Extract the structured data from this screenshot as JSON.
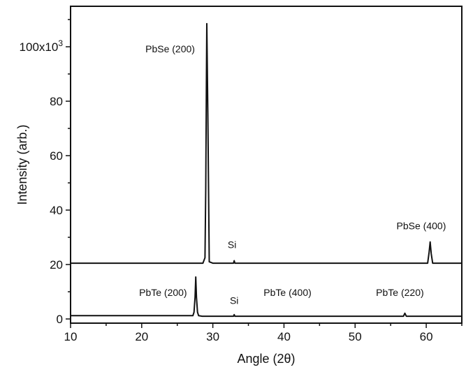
{
  "chart_data": {
    "type": "line",
    "xlabel": "Angle (2θ)",
    "ylabel": "Intensity (arb.)",
    "xlim": [
      10,
      65
    ],
    "ylim": [
      0,
      115000
    ],
    "grid": false,
    "x_ticks": [
      "10",
      "20",
      "30",
      "40",
      "50",
      "60"
    ],
    "x_tick_values": [
      10,
      20,
      30,
      40,
      50,
      60
    ],
    "y_ticks": [
      "0",
      "20",
      "40",
      "60",
      "80",
      "100x10"
    ],
    "y_tick_exponent": "3",
    "y_tick_values": [
      0,
      20000,
      40000,
      60000,
      80000,
      100000
    ],
    "series": [
      {
        "x": [
          10,
          28.6,
          28.9,
          29.0,
          29.1,
          29.15,
          29.3,
          29.5,
          30.0,
          32.9,
          33.0,
          33.1,
          60.2,
          60.4,
          60.55,
          60.7,
          60.9,
          65
        ],
        "y": [
          20500,
          20500,
          22500,
          48000,
          90000,
          108500,
          75000,
          21000,
          20500,
          20500,
          21400,
          20500,
          20500,
          24500,
          28300,
          24000,
          20500,
          20500
        ]
      },
      {
        "x": [
          10,
          27.2,
          27.35,
          27.5,
          27.6,
          27.7,
          27.85,
          28.0,
          28.5,
          32.9,
          33.0,
          33.1,
          56.8,
          57.0,
          57.2,
          65
        ],
        "y": [
          1200,
          1200,
          2500,
          8000,
          15400,
          8000,
          2500,
          1200,
          1000,
          1000,
          1600,
          1000,
          1000,
          2100,
          1000,
          1000
        ]
      }
    ],
    "annotations": [
      {
        "text": "PbSe (200)",
        "x": 24.0,
        "y": 98000
      },
      {
        "text": "Si",
        "x": 32.7,
        "y": 26000
      },
      {
        "text": "PbSe (400)",
        "x": 59.3,
        "y": 33000
      },
      {
        "text": "PbTe (200)",
        "x": 23.0,
        "y": 8500
      },
      {
        "text": "Si",
        "x": 33.0,
        "y": 5500
      },
      {
        "text": "PbTe (400)",
        "x": 40.5,
        "y": 8500
      },
      {
        "text": "PbTe (220)",
        "x": 56.3,
        "y": 8500
      }
    ]
  }
}
